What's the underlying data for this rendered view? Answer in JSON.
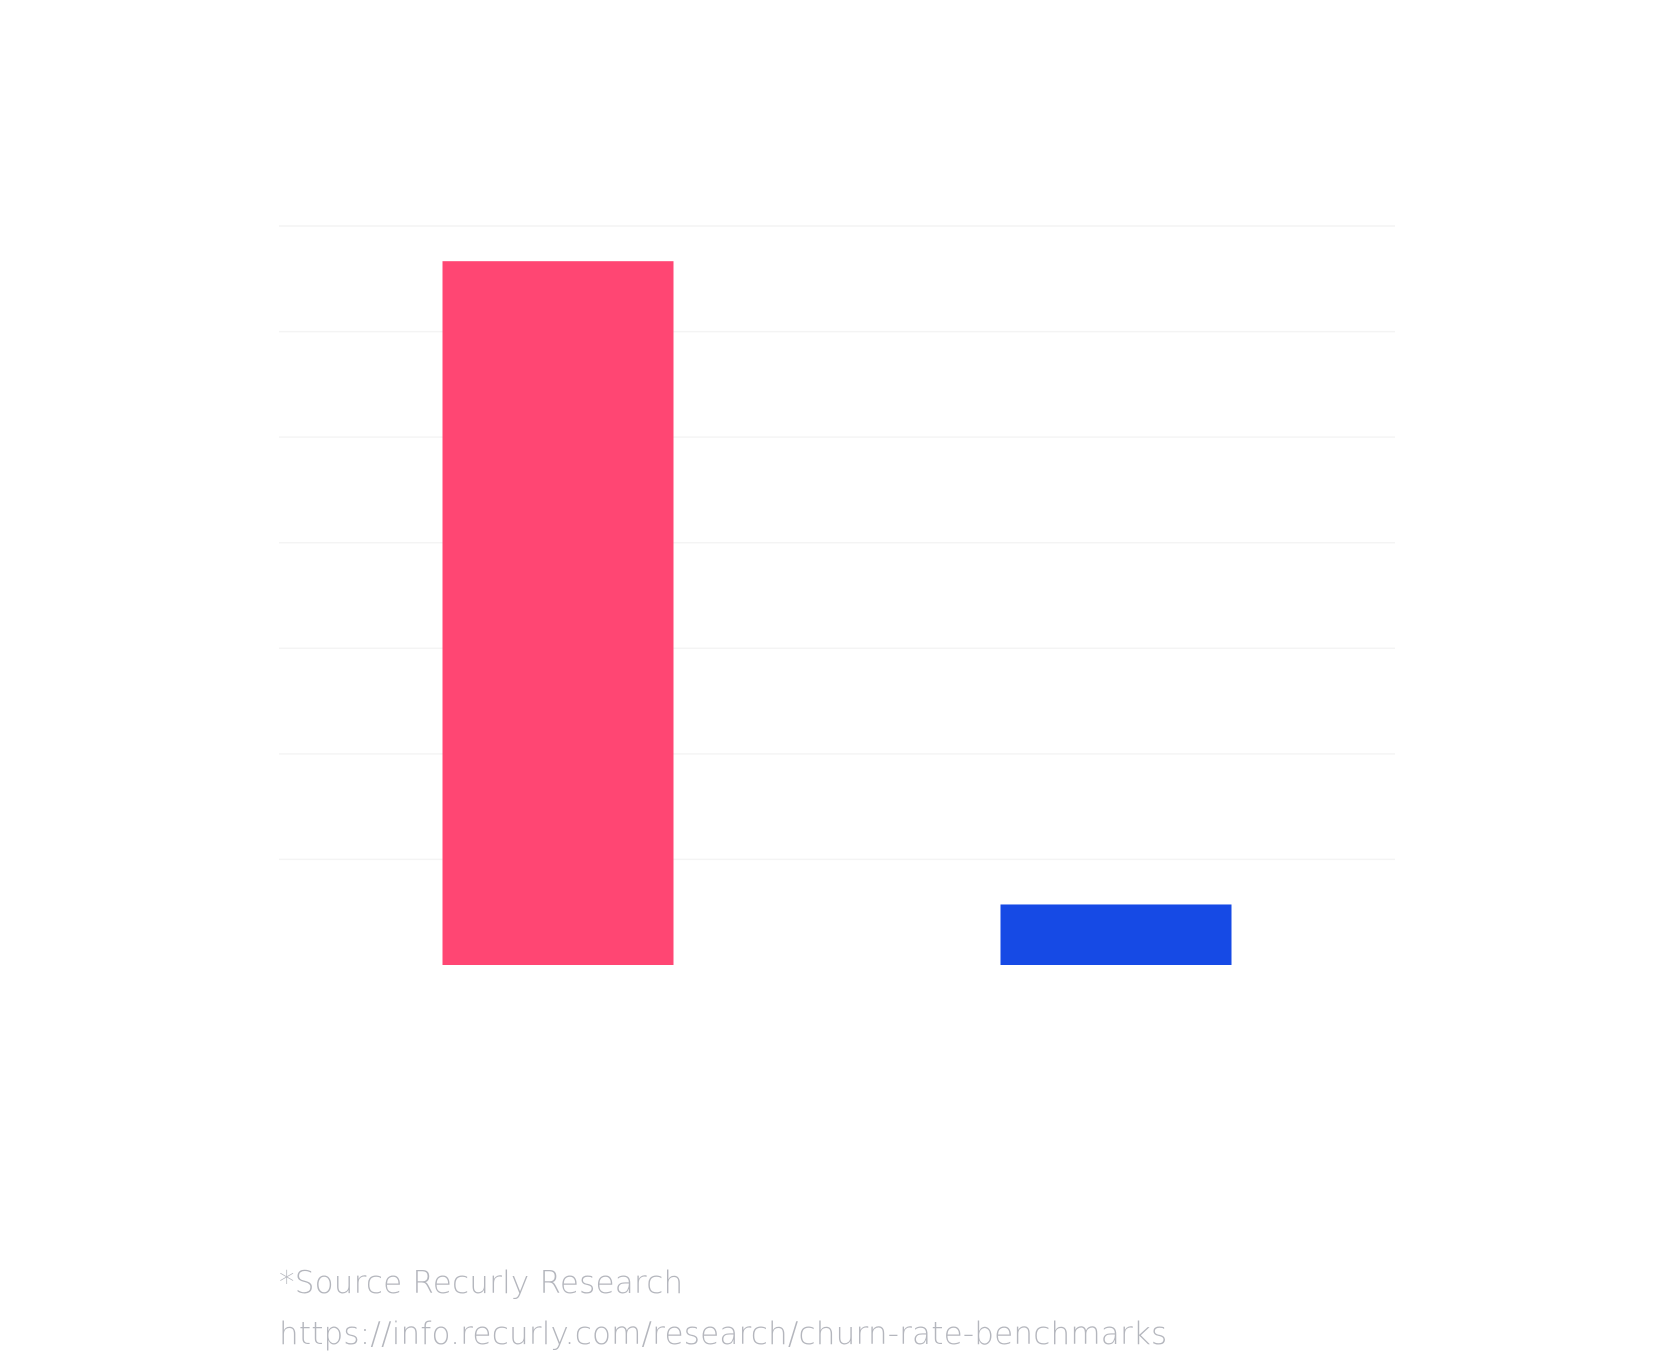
{
  "chart_data": {
    "type": "bar",
    "categories": [
      "",
      ""
    ],
    "values": [
      100,
      8.6
    ],
    "ylim": [
      0,
      105
    ],
    "grid": true,
    "colors": [
      "#ff4673",
      "#164ae5"
    ],
    "grid_color": "#f4f4f4"
  },
  "source": {
    "line1": "*Source Recurly Research",
    "line2": "https://info.recurly.com/research/churn-rate-benchmarks"
  }
}
